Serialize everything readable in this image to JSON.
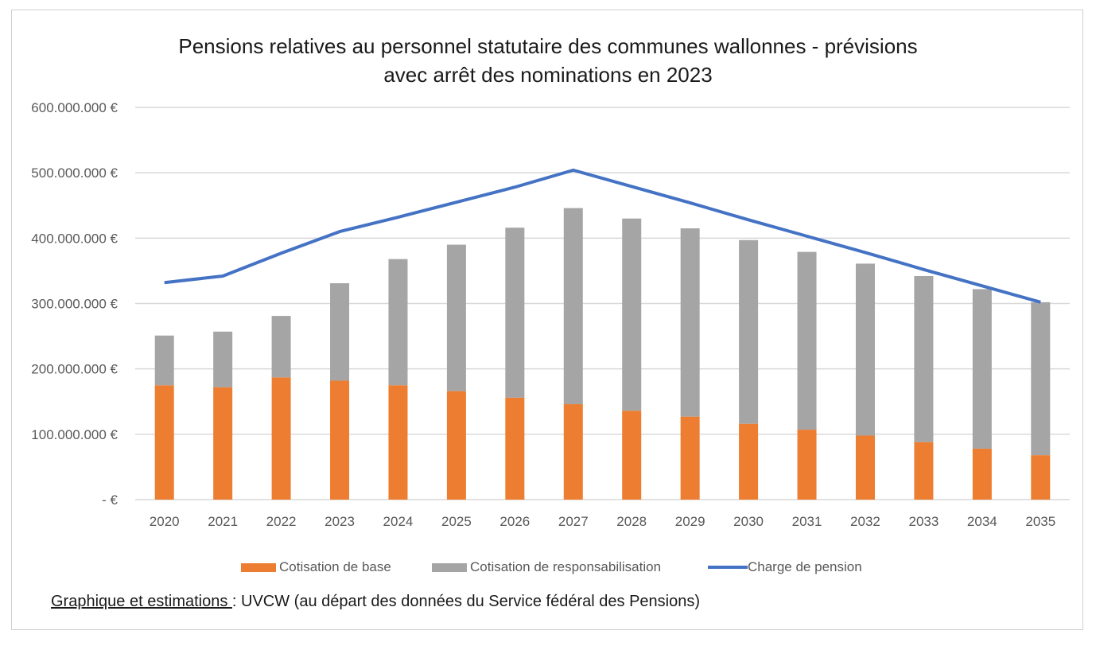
{
  "title_line1": "Pensions relatives au personnel statutaire des communes wallonnes - prévisions",
  "title_line2": "avec arrêt des nominations en 2023",
  "source": {
    "label": "Graphique et estimations ",
    "text": ": UVCW (au départ des données du Service fédéral des Pensions)"
  },
  "colors": {
    "base": "#ED7D31",
    "responsabilisation": "#A5A5A5",
    "charge": "#4472C4",
    "grid": "#D9D9D9"
  },
  "chart_data": {
    "type": "bar",
    "stacked": true,
    "title": "Pensions relatives au personnel statutaire des communes wallonnes - prévisions avec arrêt des nominations en 2023",
    "categories": [
      "2020",
      "2021",
      "2022",
      "2023",
      "2024",
      "2025",
      "2026",
      "2027",
      "2028",
      "2029",
      "2030",
      "2031",
      "2032",
      "2033",
      "2034",
      "2035"
    ],
    "ylim": [
      0,
      600000000
    ],
    "yticks": [
      0,
      100000000,
      200000000,
      300000000,
      400000000,
      500000000,
      600000000
    ],
    "ytick_labels": [
      "-  €",
      "100.000.000 €",
      "200.000.000 €",
      "300.000.000 €",
      "400.000.000 €",
      "500.000.000 €",
      "600.000.000 €"
    ],
    "grid": true,
    "legend_position": "bottom",
    "series": [
      {
        "name": "Cotisation de base",
        "kind": "bar",
        "values": [
          175000000,
          172000000,
          187000000,
          182000000,
          175000000,
          166000000,
          156000000,
          146000000,
          136000000,
          127000000,
          116000000,
          107000000,
          98000000,
          88000000,
          78000000,
          68000000
        ]
      },
      {
        "name": "Cotisation de responsabilisation",
        "kind": "bar",
        "values": [
          76000000,
          85000000,
          94000000,
          149000000,
          193000000,
          224000000,
          260000000,
          300000000,
          294000000,
          288000000,
          281000000,
          272000000,
          263000000,
          254000000,
          244000000,
          234000000
        ]
      },
      {
        "name": "Charge de pension",
        "kind": "line",
        "values": [
          332000000,
          342000000,
          377000000,
          410000000,
          432000000,
          455000000,
          478000000,
          504000000,
          479000000,
          454000000,
          428000000,
          403000000,
          378000000,
          352000000,
          327000000,
          302000000
        ]
      }
    ]
  }
}
